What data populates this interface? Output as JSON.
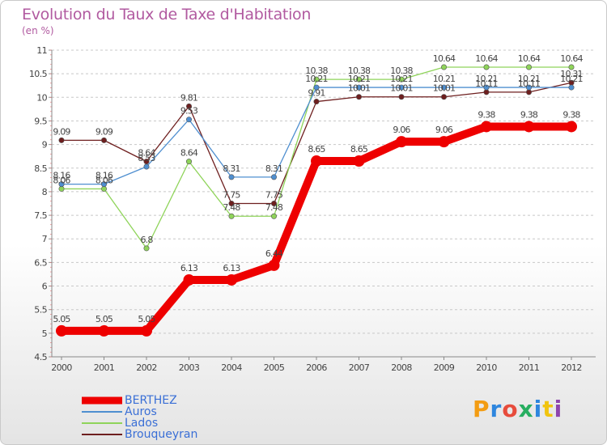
{
  "header": {
    "title": "Evolution du Taux de Taxe d'Habitation",
    "subtitle": "(en %)"
  },
  "logo": {
    "text": "Proxiti",
    "letters": [
      "P",
      "r",
      "o",
      "x",
      "i",
      "t",
      "i"
    ],
    "colors": [
      "#f39c12",
      "#2e86de",
      "#e74c3c",
      "#27ae60",
      "#2e86de",
      "#f1c40f",
      "#8e44ad"
    ]
  },
  "chart_data": {
    "type": "line",
    "title": "Evolution du Taux de Taxe d'Habitation",
    "subtitle": "(en %)",
    "xlabel": "",
    "ylabel": "",
    "x": [
      "2000",
      "2001",
      "2002",
      "2003",
      "2004",
      "2005",
      "2006",
      "2007",
      "2008",
      "2009",
      "2010",
      "2011",
      "2012"
    ],
    "ylim": [
      4.5,
      11
    ],
    "yticks": [
      "4.5",
      "5",
      "5.5",
      "6",
      "6.5",
      "7",
      "7.5",
      "8",
      "8.5",
      "9",
      "9.5",
      "10",
      "10.5",
      "11"
    ],
    "grid": "horizontal dashed",
    "legend": "bottom-left",
    "series": [
      {
        "name": "BERTHEZ",
        "color": "#ee0000",
        "values": [
          5.05,
          5.05,
          5.05,
          6.13,
          6.13,
          6.44,
          8.65,
          8.65,
          9.06,
          9.06,
          9.38,
          9.38,
          9.38
        ],
        "labels": [
          "5.05",
          "5.05",
          "5.05",
          "6.13",
          "6.13",
          "6.44",
          "8.65",
          "8.65",
          "9.06",
          "9.06",
          "9.38",
          "9.38",
          "9.38"
        ]
      },
      {
        "name": "Auros",
        "color": "#4f8fd0",
        "values": [
          8.16,
          8.16,
          8.53,
          9.53,
          8.31,
          8.31,
          10.21,
          10.21,
          10.21,
          10.21,
          10.21,
          10.21,
          10.21
        ],
        "labels": [
          "8.16",
          "8.16",
          "8.53",
          "9.53",
          "8.31",
          "8.31",
          "10.21",
          "10.21",
          "10.21",
          "10.21",
          "10.21",
          "10.21",
          "10.21"
        ]
      },
      {
        "name": "Lados",
        "color": "#8fd45a",
        "values": [
          8.06,
          8.06,
          6.8,
          8.64,
          7.48,
          7.48,
          10.38,
          10.38,
          10.38,
          10.64,
          10.64,
          10.64,
          10.64
        ],
        "labels": [
          "8.06",
          "8.06",
          "6.8",
          "8.64",
          "7.48",
          "7.48",
          "10.38",
          "10.38",
          "10.38",
          "10.64",
          "10.64",
          "10.64",
          "10.64"
        ]
      },
      {
        "name": "Brouqueyran",
        "color": "#6e1f1f",
        "values": [
          9.09,
          9.09,
          8.64,
          9.81,
          7.75,
          7.75,
          9.91,
          10.01,
          10.01,
          10.01,
          10.11,
          10.11,
          10.31
        ],
        "labels": [
          "9.09",
          "9.09",
          "8.64",
          "9.81",
          "7.75",
          "7.75",
          "9.91",
          "10.01",
          "10.01",
          "10.01",
          "10.11",
          "10.11",
          "10.31"
        ]
      }
    ]
  }
}
